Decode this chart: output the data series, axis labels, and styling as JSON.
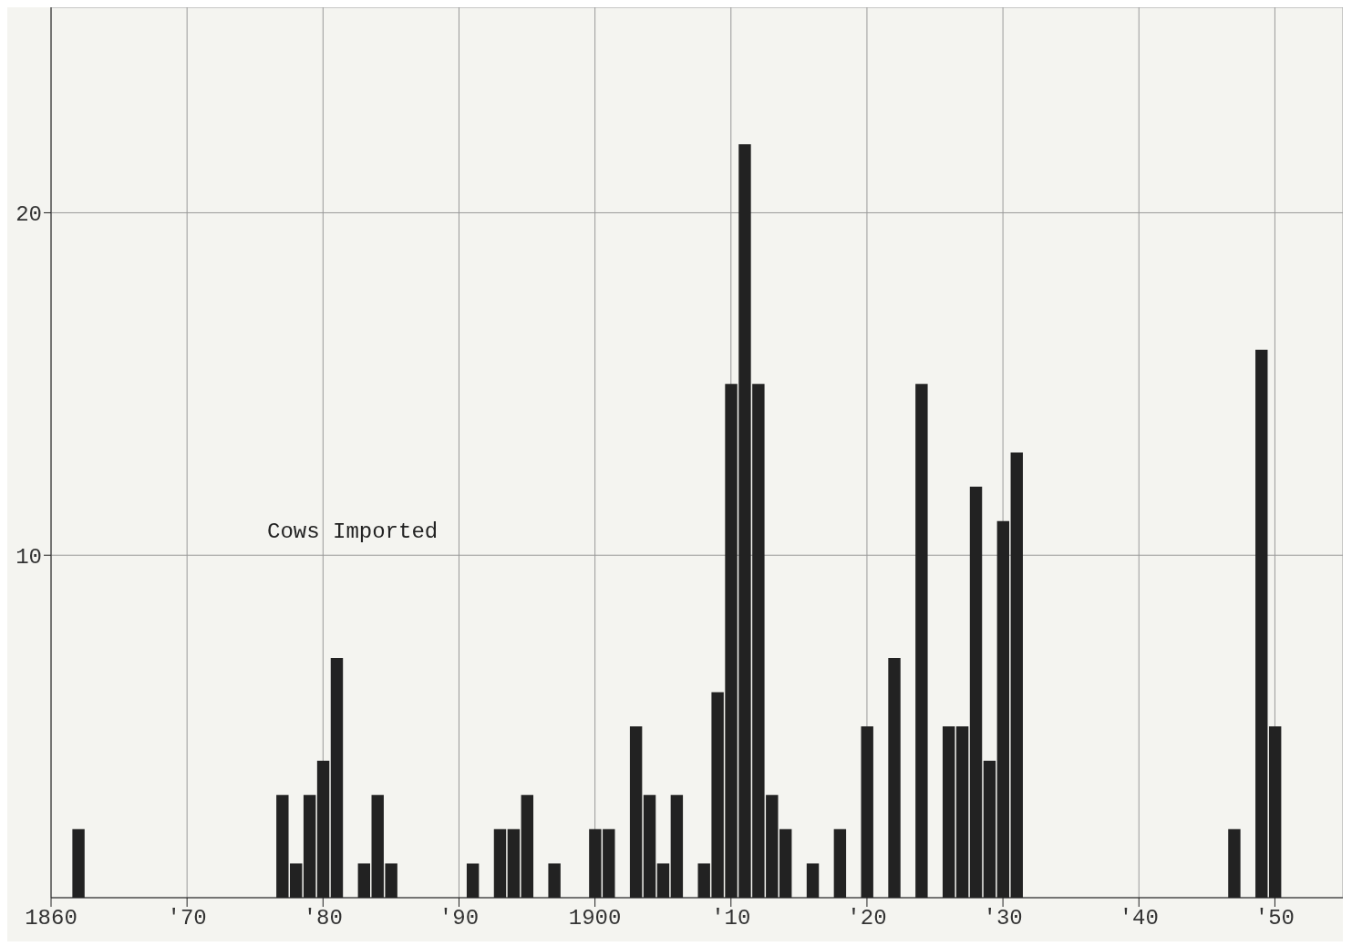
{
  "chart_data": {
    "type": "bar",
    "annotations": [
      "Cows Imported"
    ],
    "x": [
      1862,
      1877,
      1878,
      1879,
      1880,
      1881,
      1883,
      1884,
      1885,
      1891,
      1893,
      1894,
      1895,
      1897,
      1900,
      1901,
      1903,
      1904,
      1905,
      1906,
      1908,
      1909,
      1910,
      1911,
      1912,
      1913,
      1914,
      1916,
      1918,
      1920,
      1922,
      1924,
      1926,
      1927,
      1928,
      1929,
      1930,
      1931,
      1947,
      1949,
      1950
    ],
    "values": [
      2,
      3,
      1,
      3,
      4,
      7,
      1,
      3,
      1,
      1,
      2,
      2,
      3,
      1,
      2,
      2,
      5,
      3,
      1,
      3,
      1,
      6,
      15,
      22,
      15,
      3,
      2,
      1,
      2,
      5,
      7,
      15,
      5,
      5,
      12,
      4,
      11,
      13,
      2,
      16,
      5
    ],
    "color": "#222222",
    "xlim": [
      1860,
      1955
    ],
    "xticks": [
      {
        "value": 1860,
        "label": "1860"
      },
      {
        "value": 1870,
        "label": "'70"
      },
      {
        "value": 1880,
        "label": "'80"
      },
      {
        "value": 1890,
        "label": "'90"
      },
      {
        "value": 1900,
        "label": "1900"
      },
      {
        "value": 1910,
        "label": "'10"
      },
      {
        "value": 1920,
        "label": "'20"
      },
      {
        "value": 1930,
        "label": "'30"
      },
      {
        "value": 1940,
        "label": "'40"
      },
      {
        "value": 1950,
        "label": "'50"
      }
    ],
    "ylim": [
      0,
      26
    ],
    "yticks": [
      10,
      20
    ],
    "grid": true
  }
}
